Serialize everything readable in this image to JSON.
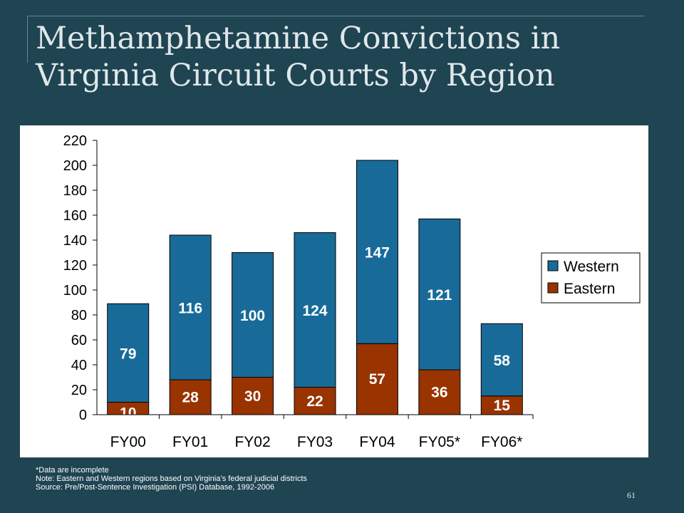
{
  "title": {
    "line1": "Methamphetamine Convictions in",
    "line2": "Virginia Circuit Courts by Region"
  },
  "chart_data": {
    "type": "bar",
    "stacked": true,
    "categories": [
      "FY00",
      "FY01",
      "FY02",
      "FY03",
      "FY04",
      "FY05*",
      "FY06*"
    ],
    "series": [
      {
        "name": "Eastern",
        "color": "#993300",
        "values": [
          10,
          28,
          30,
          22,
          57,
          36,
          15
        ]
      },
      {
        "name": "Western",
        "color": "#186b99",
        "values": [
          79,
          116,
          100,
          124,
          147,
          121,
          58
        ]
      }
    ],
    "ylim": [
      0,
      220
    ],
    "yticks": [
      0,
      20,
      40,
      60,
      80,
      100,
      120,
      140,
      160,
      180,
      200,
      220
    ],
    "legend": {
      "placement": "right",
      "entries": [
        "Western",
        "Eastern"
      ]
    },
    "grid": false
  },
  "notes": [
    "*Data are incomplete",
    "Note:  Eastern and Western regions based on Virginia’s federal judicial districts",
    "Source:  Pre/Post-Sentence Investigation (PSI) Database, 1992-2006"
  ],
  "page_number": "61",
  "colors": {
    "background": "#1f4452",
    "western": "#186b99",
    "eastern": "#993300",
    "plot_background": "#ffffff"
  }
}
